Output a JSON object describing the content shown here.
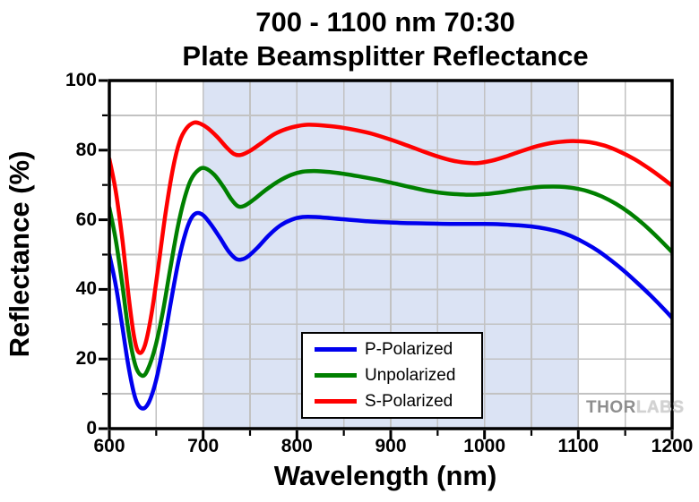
{
  "title": {
    "line1": "700 - 1100 nm 70:30",
    "line2": "Plate Beamsplitter Reflectance"
  },
  "watermark": {
    "part1": "THOR",
    "part2": "LABS"
  },
  "chart_data": {
    "type": "line",
    "title": "700 - 1100 nm 70:30 Plate Beamsplitter Reflectance",
    "xlabel": "Wavelength (nm)",
    "ylabel": "Reflectance (%)",
    "xlim": [
      600,
      1200
    ],
    "ylim": [
      0,
      100
    ],
    "x_major_ticks": [
      600,
      700,
      800,
      900,
      1000,
      1100,
      1200
    ],
    "x_minor_ticks": [
      650,
      750,
      850,
      950,
      1050,
      1150
    ],
    "y_major_ticks": [
      0,
      20,
      40,
      60,
      80,
      100
    ],
    "y_minor_ticks": [
      10,
      30,
      50,
      70,
      90
    ],
    "grid": "on (every 50 nm, every 10 %)",
    "grid_color": "#c2c2c2",
    "frame_color": "#000000",
    "shaded_band_nm": [
      700,
      1100
    ],
    "shaded_band_color": "#dbe3f4",
    "legend": {
      "position": "inside-bottom-center",
      "border": "#000000",
      "background": "#ffffff"
    },
    "series": [
      {
        "name": "P-Polarized",
        "color": "#0000ee",
        "points": [
          [
            600,
            50
          ],
          [
            607,
            41
          ],
          [
            614,
            29
          ],
          [
            621,
            17
          ],
          [
            628,
            8.5
          ],
          [
            635,
            5.8
          ],
          [
            642,
            7.5
          ],
          [
            650,
            14
          ],
          [
            658,
            24.5
          ],
          [
            666,
            37
          ],
          [
            674,
            48.5
          ],
          [
            681,
            56
          ],
          [
            687,
            60.3
          ],
          [
            693,
            61.9
          ],
          [
            700,
            61.3
          ],
          [
            708,
            58.8
          ],
          [
            718,
            54.8
          ],
          [
            727,
            51
          ],
          [
            735,
            48.8
          ],
          [
            741,
            48.6
          ],
          [
            748,
            49.5
          ],
          [
            758,
            52
          ],
          [
            770,
            55.5
          ],
          [
            782,
            58.3
          ],
          [
            794,
            60
          ],
          [
            806,
            60.8
          ],
          [
            820,
            60.8
          ],
          [
            838,
            60.4
          ],
          [
            856,
            60
          ],
          [
            874,
            59.6
          ],
          [
            892,
            59.3
          ],
          [
            910,
            59.1
          ],
          [
            928,
            59
          ],
          [
            946,
            58.9
          ],
          [
            964,
            58.8
          ],
          [
            982,
            58.8
          ],
          [
            1000,
            58.8
          ],
          [
            1018,
            58.7
          ],
          [
            1036,
            58.4
          ],
          [
            1052,
            58
          ],
          [
            1066,
            57.4
          ],
          [
            1080,
            56.5
          ],
          [
            1094,
            55.1
          ],
          [
            1108,
            53.2
          ],
          [
            1122,
            50.9
          ],
          [
            1136,
            48.1
          ],
          [
            1150,
            45
          ],
          [
            1164,
            41.6
          ],
          [
            1178,
            38
          ],
          [
            1190,
            34.7
          ],
          [
            1200,
            31.8
          ]
        ]
      },
      {
        "name": "Unpolarized",
        "color": "#008000",
        "points": [
          [
            600,
            63.5
          ],
          [
            607,
            54
          ],
          [
            614,
            41
          ],
          [
            621,
            27
          ],
          [
            628,
            18
          ],
          [
            635,
            15.2
          ],
          [
            641,
            17
          ],
          [
            649,
            23.5
          ],
          [
            657,
            33.5
          ],
          [
            665,
            46
          ],
          [
            673,
            58
          ],
          [
            680,
            66
          ],
          [
            687,
            71.5
          ],
          [
            695,
            74.3
          ],
          [
            702,
            74.8
          ],
          [
            712,
            72.9
          ],
          [
            722,
            69.3
          ],
          [
            730,
            65.9
          ],
          [
            737,
            63.9
          ],
          [
            744,
            64
          ],
          [
            754,
            65.8
          ],
          [
            766,
            68.4
          ],
          [
            780,
            71
          ],
          [
            794,
            72.9
          ],
          [
            806,
            73.8
          ],
          [
            818,
            74
          ],
          [
            835,
            73.7
          ],
          [
            852,
            73.1
          ],
          [
            870,
            72.3
          ],
          [
            888,
            71.4
          ],
          [
            906,
            70.3
          ],
          [
            924,
            69.2
          ],
          [
            942,
            68.2
          ],
          [
            958,
            67.6
          ],
          [
            974,
            67.3
          ],
          [
            988,
            67.2
          ],
          [
            1002,
            67.4
          ],
          [
            1018,
            67.9
          ],
          [
            1034,
            68.6
          ],
          [
            1050,
            69.2
          ],
          [
            1064,
            69.5
          ],
          [
            1080,
            69.5
          ],
          [
            1095,
            69.1
          ],
          [
            1110,
            68.2
          ],
          [
            1125,
            66.7
          ],
          [
            1140,
            64.6
          ],
          [
            1155,
            61.9
          ],
          [
            1170,
            58.6
          ],
          [
            1185,
            54.8
          ],
          [
            1200,
            50.7
          ]
        ]
      },
      {
        "name": "S-Polarized",
        "color": "#ff0000",
        "points": [
          [
            600,
            77.5
          ],
          [
            607,
            68
          ],
          [
            614,
            54
          ],
          [
            621,
            37
          ],
          [
            627,
            25.5
          ],
          [
            632,
            21.8
          ],
          [
            638,
            24
          ],
          [
            645,
            33
          ],
          [
            652,
            46
          ],
          [
            660,
            62
          ],
          [
            668,
            75
          ],
          [
            675,
            82.5
          ],
          [
            682,
            86.2
          ],
          [
            690,
            87.9
          ],
          [
            697,
            87.6
          ],
          [
            705,
            86.3
          ],
          [
            715,
            83.8
          ],
          [
            725,
            80.8
          ],
          [
            733,
            78.9
          ],
          [
            740,
            78.6
          ],
          [
            750,
            79.8
          ],
          [
            762,
            82
          ],
          [
            776,
            84.6
          ],
          [
            790,
            86.2
          ],
          [
            802,
            87
          ],
          [
            812,
            87.3
          ],
          [
            828,
            87.1
          ],
          [
            845,
            86.6
          ],
          [
            862,
            85.8
          ],
          [
            880,
            84.7
          ],
          [
            898,
            83.2
          ],
          [
            916,
            81.5
          ],
          [
            934,
            79.7
          ],
          [
            950,
            78.2
          ],
          [
            966,
            77
          ],
          [
            980,
            76.4
          ],
          [
            993,
            76.3
          ],
          [
            1008,
            77
          ],
          [
            1022,
            78.1
          ],
          [
            1038,
            79.6
          ],
          [
            1054,
            81
          ],
          [
            1070,
            82
          ],
          [
            1085,
            82.5
          ],
          [
            1097,
            82.6
          ],
          [
            1112,
            82.3
          ],
          [
            1128,
            81.3
          ],
          [
            1144,
            79.6
          ],
          [
            1160,
            77.4
          ],
          [
            1175,
            74.8
          ],
          [
            1188,
            72.3
          ],
          [
            1200,
            69.8
          ]
        ]
      }
    ]
  }
}
